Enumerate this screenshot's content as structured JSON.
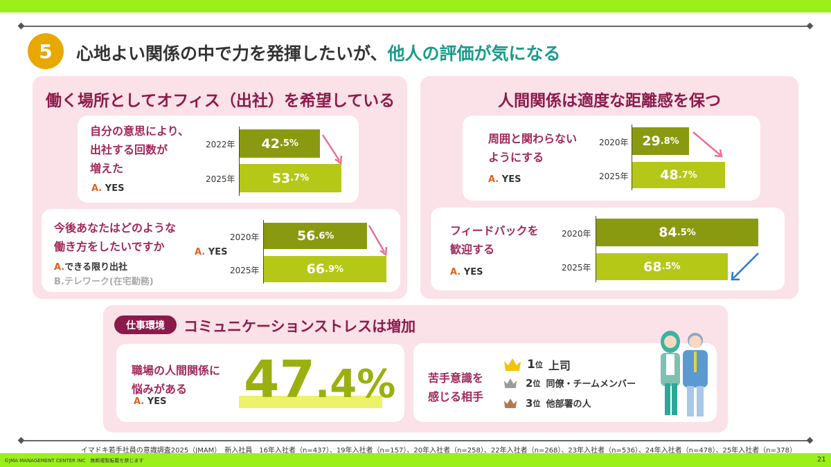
{
  "header": {
    "number": "5",
    "title_main": "心地よい関係の中で力を発揮したいが、",
    "title_highlight": "他人の評価が気になる"
  },
  "left_panel": {
    "heading": "働く場所としてオフィス（出社）を希望している",
    "card1": {
      "question_lines": [
        "自分の意思により、",
        "出社する回数が",
        "増えた"
      ],
      "answer_prefix": "A.",
      "answer": "YES",
      "bars": [
        {
          "year": "2022年",
          "int": "42",
          "dec": ".5%",
          "value": 42.5
        },
        {
          "year": "2025年",
          "int": "53",
          "dec": ".7%",
          "value": 53.7
        }
      ]
    },
    "card2": {
      "question_lines": [
        "今後あなたはどのような",
        "働き方をしたいですか"
      ],
      "answer_prefix": "A.",
      "answer": "YES",
      "option_a_prefix": "A.",
      "option_a": "できる限り出社",
      "option_b_prefix": "B.",
      "option_b": "テレワーク(在宅勤務)",
      "bars": [
        {
          "year": "2020年",
          "int": "56",
          "dec": ".6%",
          "value": 56.6
        },
        {
          "year": "2025年",
          "int": "66",
          "dec": ".9%",
          "value": 66.9
        }
      ]
    }
  },
  "right_panel": {
    "heading": "人間関係は適度な距離感を保つ",
    "card3": {
      "question_lines": [
        "周囲と関わらない",
        "ようにする"
      ],
      "answer_prefix": "A.",
      "answer": "YES",
      "bars": [
        {
          "year": "2020年",
          "int": "29",
          "dec": ".8%",
          "value": 29.8
        },
        {
          "year": "2025年",
          "int": "48",
          "dec": ".7%",
          "value": 48.7
        }
      ]
    },
    "card4": {
      "question_lines": [
        "フィードバックを",
        "歓迎する"
      ],
      "answer_prefix": "A.",
      "answer": "YES",
      "bars": [
        {
          "year": "2020年",
          "int": "84",
          "dec": ".5%",
          "value": 84.5
        },
        {
          "year": "2025年",
          "int": "68",
          "dec": ".5%",
          "value": 68.5
        }
      ]
    }
  },
  "bottom_panel": {
    "badge": "仕事環境",
    "heading": "コミュニケーションストレスは増加",
    "card5": {
      "question_lines": [
        "職場の人間関係に",
        "悩みがある"
      ],
      "answer_prefix": "A.",
      "answer": "YES",
      "big_int": "47",
      "big_dec": ".4%"
    },
    "card6": {
      "question_lines": [
        "苦手意識を",
        "感じる相手"
      ],
      "ranks": [
        {
          "num": "1",
          "unit": "位",
          "label": "上司",
          "color": "#f2c400"
        },
        {
          "num": "2",
          "unit": "位",
          "label": "同僚・チームメンバー",
          "color": "#9a9a9a"
        },
        {
          "num": "3",
          "unit": "位",
          "label": "他部署の人",
          "color": "#b07a50"
        }
      ]
    }
  },
  "footer": {
    "source": "イマドキ若手社員の意識調査2025（JMAM）　新入社員　16年入社者（n=437）、19年入社者（n=157）、20年入社者（n=258）、22年入社者（n=268）、23年入社者（n=536）、24年入社者（n=478）、25年入社者（n=378）",
    "copyright": "©JMA MANAGEMENT CENTER INC　無断複製転載を禁じます",
    "page": "21"
  }
}
